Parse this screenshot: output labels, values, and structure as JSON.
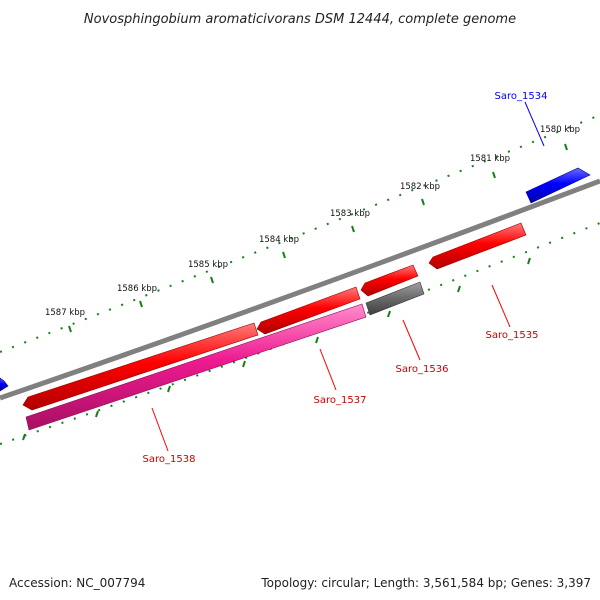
{
  "title": "Novosphingobium aromaticivorans DSM 12444, complete genome",
  "footer": {
    "accession_label": "Accession: NC_007794",
    "topology_label": "Topology: circular; Length: 3,561,584 bp; Genes: 3,397"
  },
  "colors": {
    "backbone": "#808080",
    "ruler": "#1a7f1a",
    "forward_gene": "#0000ff",
    "reverse_gene": "#ff0000",
    "rna_gene": "#ee1a8f",
    "pseudo_gene": "#6e6e6e"
  },
  "ruler": {
    "tick_labels": [
      "1580 kbp",
      "1581 kbp",
      "1582 kbp",
      "1583 kbp",
      "1584 kbp",
      "1585 kbp",
      "1586 kbp",
      "1587 kbp"
    ]
  },
  "genes": [
    {
      "id": "saro_1534",
      "label": "Saro_1534",
      "strand": "+",
      "type": "forward_gene"
    },
    {
      "id": "saro_1535",
      "label": "Saro_1535",
      "strand": "-",
      "type": "reverse_gene"
    },
    {
      "id": "saro_1536",
      "label": "Saro_1536",
      "strand": "-",
      "type": "pseudo_gene"
    },
    {
      "id": "saro_1537",
      "label": "Saro_1537",
      "strand": "-",
      "type": "reverse_gene"
    },
    {
      "id": "saro_1538",
      "label": "Saro_1538",
      "strand": "-",
      "type": "rna_gene"
    }
  ]
}
